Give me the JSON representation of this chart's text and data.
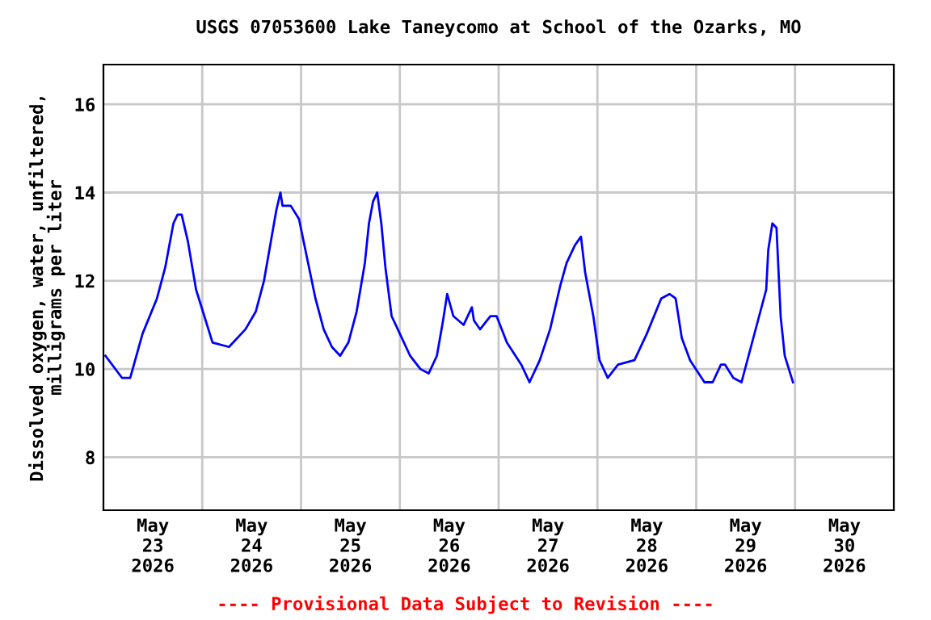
{
  "chart_data": {
    "type": "line",
    "title": "USGS 07053600 Lake Taneycomo at School of the Ozarks, MO",
    "ylabel": "Dissolved oxygen, water, unfiltered,\nmilligrams per liter",
    "annotations": [
      "---- Provisional Data Subject to Revision ----"
    ],
    "x": [
      "2026-05-23T00:30",
      "2026-05-23T04:30",
      "2026-05-23T06:30",
      "2026-05-23T09:30",
      "2026-05-23T13:00",
      "2026-05-23T15:00",
      "2026-05-23T17:00",
      "2026-05-23T18:00",
      "2026-05-23T19:00",
      "2026-05-23T20:30",
      "2026-05-23T22:30",
      "2026-05-24T00:30",
      "2026-05-24T02:30",
      "2026-05-24T06:30",
      "2026-05-24T10:30",
      "2026-05-24T13:00",
      "2026-05-24T15:00",
      "2026-05-24T16:30",
      "2026-05-24T18:00",
      "2026-05-24T19:00",
      "2026-05-24T19:30",
      "2026-05-24T21:30",
      "2026-05-24T23:30",
      "2026-05-25T01:30",
      "2026-05-25T03:30",
      "2026-05-25T05:30",
      "2026-05-25T07:30",
      "2026-05-25T09:30",
      "2026-05-25T11:30",
      "2026-05-25T13:30",
      "2026-05-25T15:30",
      "2026-05-25T16:30",
      "2026-05-25T17:30",
      "2026-05-25T18:30",
      "2026-05-25T19:30",
      "2026-05-25T20:30",
      "2026-05-25T22:00",
      "2026-05-26T00:00",
      "2026-05-26T02:30",
      "2026-05-26T05:00",
      "2026-05-26T07:00",
      "2026-05-26T09:00",
      "2026-05-26T10:30",
      "2026-05-26T11:30",
      "2026-05-26T13:00",
      "2026-05-26T15:30",
      "2026-05-26T17:30",
      "2026-05-26T18:00",
      "2026-05-26T19:30",
      "2026-05-26T22:00",
      "2026-05-26T23:30",
      "2026-05-27T02:00",
      "2026-05-27T05:30",
      "2026-05-27T07:30",
      "2026-05-27T10:00",
      "2026-05-27T12:30",
      "2026-05-27T15:00",
      "2026-05-27T16:30",
      "2026-05-27T18:30",
      "2026-05-27T20:00",
      "2026-05-27T21:00",
      "2026-05-27T23:00",
      "2026-05-28T00:30",
      "2026-05-28T02:30",
      "2026-05-28T05:00",
      "2026-05-28T09:00",
      "2026-05-28T12:00",
      "2026-05-28T15:30",
      "2026-05-28T17:30",
      "2026-05-28T19:00",
      "2026-05-28T20:30",
      "2026-05-28T22:30",
      "2026-05-29T02:00",
      "2026-05-29T04:00",
      "2026-05-29T06:00",
      "2026-05-29T07:00",
      "2026-05-29T09:00",
      "2026-05-29T11:00",
      "2026-05-29T13:00",
      "2026-05-29T15:00",
      "2026-05-29T17:00",
      "2026-05-29T17:30",
      "2026-05-29T18:30",
      "2026-05-29T19:30",
      "2026-05-29T20:30",
      "2026-05-29T21:30",
      "2026-05-29T23:30"
    ],
    "series": [
      {
        "color": "#0000ff",
        "values": [
          10.3,
          9.8,
          9.8,
          10.8,
          11.6,
          12.3,
          13.3,
          13.5,
          13.5,
          12.9,
          11.8,
          11.2,
          10.6,
          10.5,
          10.9,
          11.3,
          12.0,
          12.8,
          13.6,
          14.0,
          13.7,
          13.7,
          13.4,
          12.5,
          11.6,
          10.9,
          10.5,
          10.3,
          10.6,
          11.3,
          12.4,
          13.3,
          13.8,
          14.0,
          13.3,
          12.3,
          11.2,
          10.8,
          10.3,
          10.0,
          9.9,
          10.3,
          11.1,
          11.7,
          11.2,
          11.0,
          11.4,
          11.1,
          10.9,
          11.2,
          11.2,
          10.6,
          10.1,
          9.7,
          10.2,
          10.9,
          11.9,
          12.4,
          12.8,
          13.0,
          12.2,
          11.2,
          10.2,
          9.8,
          10.1,
          10.2,
          10.8,
          11.6,
          11.7,
          11.6,
          10.7,
          10.2,
          9.7,
          9.7,
          10.1,
          10.1,
          9.8,
          9.7,
          10.4,
          11.1,
          11.8,
          12.7,
          13.3,
          13.2,
          11.2,
          10.3,
          9.7
        ]
      }
    ],
    "xlim": [
      "2026-05-23T00:00",
      "2026-05-31T00:00"
    ],
    "xticks": [
      {
        "value": "2026-05-23T12:00",
        "label": "May\n23\n2026"
      },
      {
        "value": "2026-05-24T12:00",
        "label": "May\n24\n2026"
      },
      {
        "value": "2026-05-25T12:00",
        "label": "May\n25\n2026"
      },
      {
        "value": "2026-05-26T12:00",
        "label": "May\n26\n2026"
      },
      {
        "value": "2026-05-27T12:00",
        "label": "May\n27\n2026"
      },
      {
        "value": "2026-05-28T12:00",
        "label": "May\n28\n2026"
      },
      {
        "value": "2026-05-29T12:00",
        "label": "May\n29\n2026"
      },
      {
        "value": "2026-05-30T12:00",
        "label": "May\n30\n2026"
      },
      {
        "value": "2026-05-24T00:00",
        "label": null
      },
      {
        "value": "2026-05-25T00:00",
        "label": null
      },
      {
        "value": "2026-05-26T00:00",
        "label": null
      },
      {
        "value": "2026-05-27T00:00",
        "label": null
      },
      {
        "value": "2026-05-28T00:00",
        "label": null
      },
      {
        "value": "2026-05-29T00:00",
        "label": null
      },
      {
        "value": "2026-05-30T00:00",
        "label": null
      }
    ],
    "ylim": [
      6.8,
      16.9
    ],
    "yticks": [
      8,
      10,
      12,
      14,
      16
    ],
    "grid": true,
    "line_style": "solid",
    "marker": "none"
  }
}
